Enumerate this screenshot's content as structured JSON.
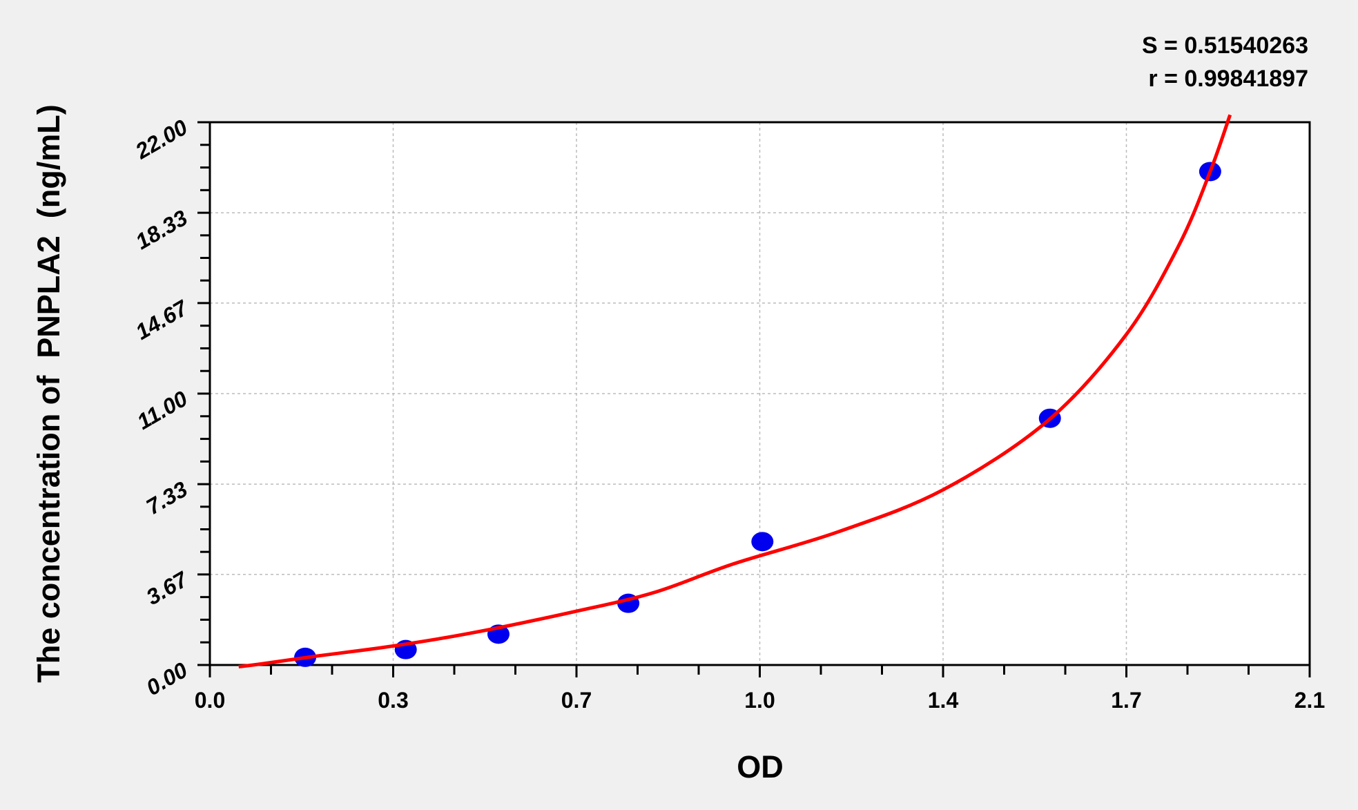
{
  "chart_data": {
    "type": "scatter",
    "title": "",
    "xlabel": "OD",
    "ylabel": "The concentration of  PNPLA2  (ng/mL)",
    "xlim": [
      0,
      2.1
    ],
    "ylim": [
      0,
      22
    ],
    "x_ticks": [
      0,
      0.35,
      0.7,
      1.05,
      1.4,
      1.75,
      2.1
    ],
    "x_tick_labels": [
      "0.0",
      "0.3",
      "0.7",
      "1.0",
      "1.4",
      "1.7",
      "2.1"
    ],
    "y_ticks": [
      0,
      3.67,
      7.33,
      11,
      14.67,
      18.33,
      22
    ],
    "y_tick_labels": [
      "0.00",
      "3.67",
      "7.33",
      "11.00",
      "14.67",
      "18.33",
      "22.00"
    ],
    "grid": true,
    "annotations": [
      "S = 0.51540263",
      "r = 0.99841897"
    ],
    "series": [
      {
        "type": "scatter",
        "color": "#0000ee",
        "x": [
          0.182,
          0.374,
          0.551,
          0.799,
          1.055,
          1.604,
          1.91
        ],
        "y": [
          0.31,
          0.625,
          1.25,
          2.5,
          5,
          10,
          20
        ]
      },
      {
        "type": "line",
        "color": "#ff0000",
        "x": [
          0.055,
          0.1,
          0.2,
          0.35,
          0.5,
          0.7,
          0.85,
          1.0,
          1.2,
          1.4,
          1.6,
          1.75,
          1.85,
          1.91,
          1.948
        ],
        "y": [
          -0.07,
          0.05,
          0.35,
          0.77,
          1.3,
          2.18,
          2.95,
          4.1,
          5.4,
          7.1,
          9.9,
          13.4,
          17.0,
          20.0,
          22.3
        ]
      }
    ]
  }
}
